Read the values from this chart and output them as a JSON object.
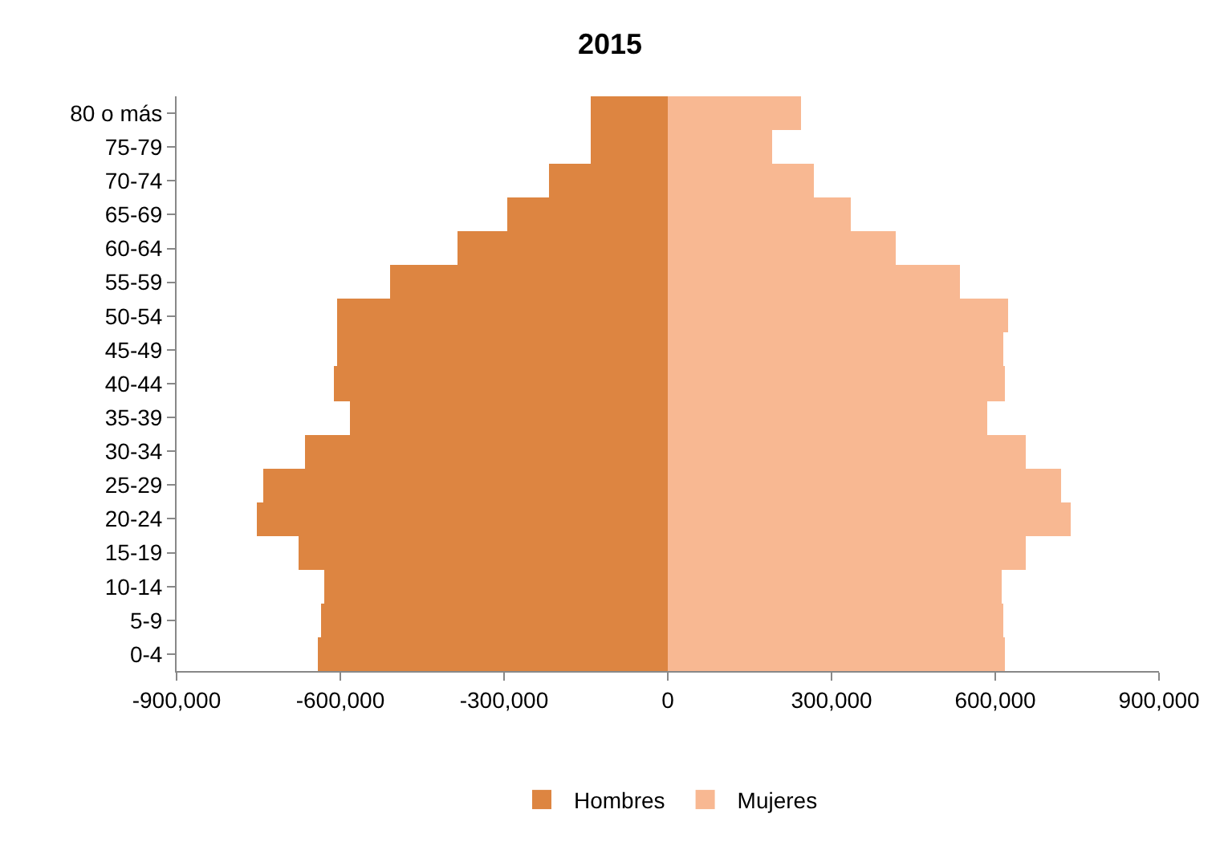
{
  "chart_data": {
    "type": "bar",
    "orientation": "horizontal",
    "stacked": true,
    "title": "2015",
    "categories": [
      "80 o más",
      "75-79",
      "70-74",
      "65-69",
      "60-64",
      "55-59",
      "50-54",
      "45-49",
      "40-44",
      "35-39",
      "30-34",
      "25-29",
      "20-24",
      "15-19",
      "10-14",
      "5-9",
      "0-4"
    ],
    "series": [
      {
        "name": "Hombres",
        "color": "#dd8541",
        "values": [
          -140000,
          -140000,
          -218000,
          -294000,
          -385000,
          -510000,
          -606000,
          -606000,
          -612000,
          -583000,
          -664000,
          -740000,
          -754000,
          -676000,
          -629000,
          -635000,
          -641000
        ]
      },
      {
        "name": "Mujeres",
        "color": "#f8b892",
        "values": [
          245000,
          192000,
          268000,
          335000,
          417000,
          536000,
          623000,
          615000,
          618000,
          586000,
          655000,
          722000,
          737000,
          655000,
          612000,
          615000,
          618000
        ]
      }
    ],
    "xlim": [
      -900000,
      900000
    ],
    "xticks": [
      {
        "value": -900000,
        "label": "-900,000"
      },
      {
        "value": -600000,
        "label": "-600,000"
      },
      {
        "value": -300000,
        "label": "-300,000"
      },
      0,
      {
        "value": 300000,
        "label": "300,000"
      },
      {
        "value": 600000,
        "label": "600,000"
      },
      {
        "value": 900000,
        "label": "900,000"
      }
    ],
    "legend": "bottom"
  }
}
